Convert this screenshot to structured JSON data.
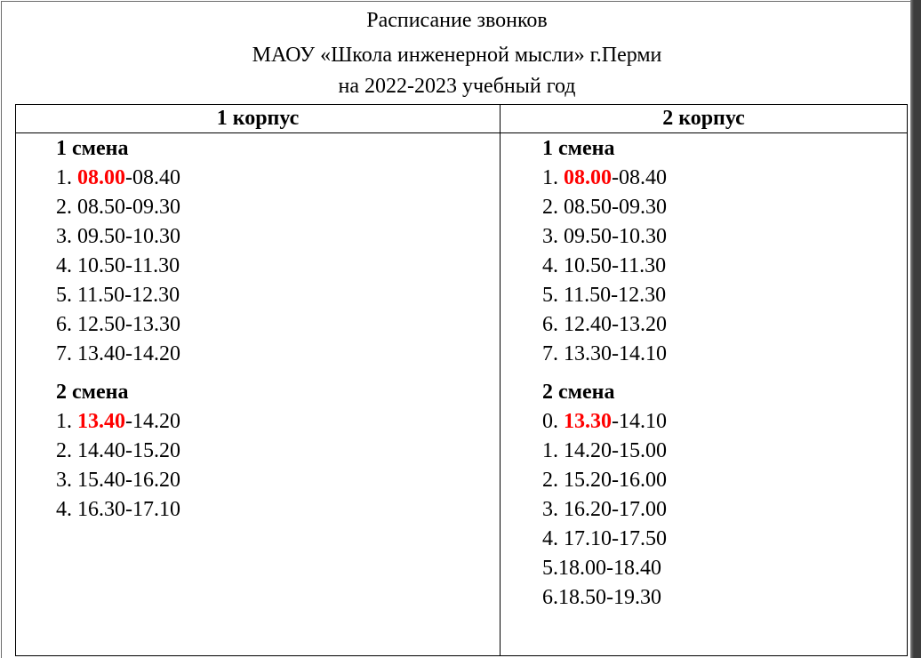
{
  "header": {
    "line1": "Расписание звонков",
    "line2": "МАОУ «Школа инженерной мысли» г.Перми",
    "line3": "на 2022-2023 учебный год"
  },
  "columns": [
    {
      "title": "1 корпус",
      "shift1": {
        "label": "1 смена",
        "rows": [
          {
            "num": "1. ",
            "start": "08.00",
            "rest": "-08.40"
          },
          {
            "text": "2. 08.50-09.30"
          },
          {
            "text": "3. 09.50-10.30"
          },
          {
            "text": "4. 10.50-11.30"
          },
          {
            "text": "5. 11.50-12.30"
          },
          {
            "text": "6. 12.50-13.30"
          },
          {
            "text": "7. 13.40-14.20"
          }
        ]
      },
      "shift2": {
        "label": "2 смена",
        "rows": [
          {
            "num": "1. ",
            "start": "13.40",
            "rest": "-14.20"
          },
          {
            "text": "2. 14.40-15.20"
          },
          {
            "text": "3. 15.40-16.20"
          },
          {
            "text": "4. 16.30-17.10"
          }
        ]
      }
    },
    {
      "title": "2 корпус",
      "shift1": {
        "label": "1 смена",
        "rows": [
          {
            "num": "1. ",
            "start": "08.00",
            "rest": "-08.40"
          },
          {
            "text": "2. 08.50-09.30"
          },
          {
            "text": "3. 09.50-10.30"
          },
          {
            "text": "4. 10.50-11.30"
          },
          {
            "text": "5. 11.50-12.30"
          },
          {
            "text": "6. 12.40-13.20"
          },
          {
            "text": "7. 13.30-14.10"
          }
        ]
      },
      "shift2": {
        "label": "2 смена",
        "rows": [
          {
            "num": "0. ",
            "start": "13.30",
            "rest": "-14.10"
          },
          {
            "text": "1. 14.20-15.00"
          },
          {
            "text": "2. 15.20-16.00"
          },
          {
            "text": "3. 16.20-17.00"
          },
          {
            "text": "4. 17.10-17.50"
          },
          {
            "text": "5.18.00-18.40"
          },
          {
            "text": "6.18.50-19.30"
          }
        ]
      }
    }
  ],
  "colors": {
    "highlight": "#ff0000",
    "text": "#000000"
  }
}
